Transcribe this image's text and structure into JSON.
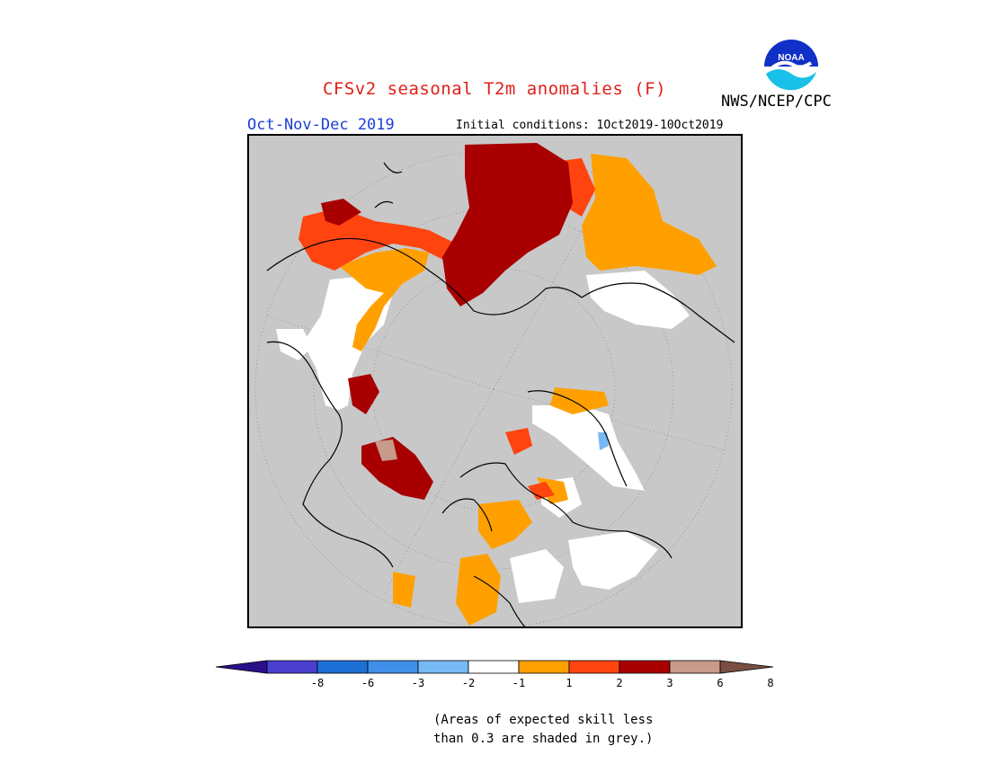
{
  "header": {
    "title": "CFSv2 seasonal T2m anomalies (F)",
    "agency": "NWS/NCEP/CPC",
    "logo_text": "NOAA",
    "season": "Oct-Nov-Dec 2019",
    "init_conditions": "Initial conditions: 1Oct2019-10Oct2019"
  },
  "legend": {
    "colors": [
      "#2a0f8a",
      "#4a3fcf",
      "#1d6fd6",
      "#3f8fe8",
      "#77b9f5",
      "#ffffff",
      "#ffa000",
      "#ff4410",
      "#a80000",
      "#c79a8a",
      "#7a4e42"
    ],
    "tick_labels": [
      "-8",
      "-6",
      "-3",
      "-2",
      "-1",
      "1",
      "2",
      "3",
      "6",
      "8"
    ]
  },
  "note": {
    "line1": "(Areas of expected skill less",
    "line2": "than 0.3 are shaded in grey.)"
  },
  "colors": {
    "title": "#e0201a",
    "season": "#1c3fd6",
    "grey_mask": "#c8c8c8"
  }
}
